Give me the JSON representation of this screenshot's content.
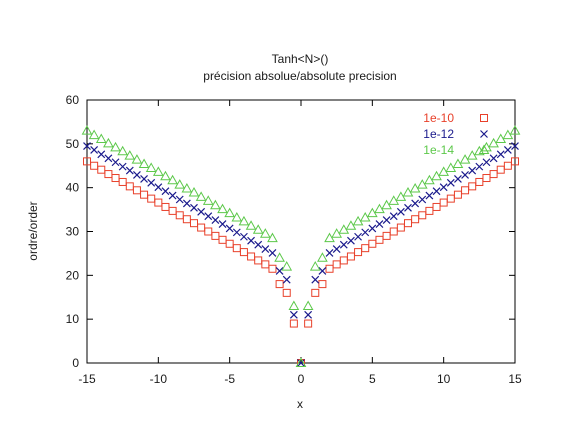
{
  "chart_data": {
    "type": "scatter",
    "title": "Tanh<N>()",
    "subtitle": "précision absolue/absolute precision",
    "xlabel": "x",
    "ylabel": "ordre/order",
    "xlim": [
      -15,
      15
    ],
    "ylim": [
      0,
      60
    ],
    "x_ticks": [
      "-15",
      "-10",
      "-5",
      "0",
      "5",
      "10",
      "15"
    ],
    "y_ticks": [
      "0",
      "10",
      "20",
      "30",
      "40",
      "50",
      "60"
    ],
    "grid": false,
    "legend_position": "top-right",
    "x": [
      -15,
      -14.5,
      -14,
      -13.5,
      -13,
      -12.5,
      -12,
      -11.5,
      -11,
      -10.5,
      -10,
      -9.5,
      -9,
      -8.5,
      -8,
      -7.5,
      -7,
      -6.5,
      -6,
      -5.5,
      -5,
      -4.5,
      -4,
      -3.5,
      -3,
      -2.5,
      -2,
      -1.5,
      -1,
      -0.5,
      0,
      0.5,
      1,
      1.5,
      2,
      2.5,
      3,
      3.5,
      4,
      4.5,
      5,
      5.5,
      6,
      6.5,
      7,
      7.5,
      8,
      8.5,
      9,
      9.5,
      10,
      10.5,
      11,
      11.5,
      12,
      12.5,
      13,
      13.5,
      14,
      14.5,
      15
    ],
    "series": [
      {
        "name": "1e-10",
        "color": "#e8402a",
        "marker": "square",
        "values": [
          46.0,
          45.0,
          44.1,
          43.1,
          42.2,
          41.3,
          40.3,
          39.4,
          38.4,
          37.5,
          36.6,
          35.6,
          34.7,
          33.7,
          32.8,
          31.9,
          30.9,
          30.0,
          29.0,
          28.1,
          27.2,
          26.2,
          25.3,
          24.3,
          23.4,
          22.5,
          21.5,
          18.0,
          16.0,
          9.0,
          0,
          9.0,
          16.0,
          18.0,
          21.5,
          22.5,
          23.4,
          24.3,
          25.3,
          26.2,
          27.2,
          28.1,
          29.0,
          30.0,
          30.9,
          31.9,
          32.8,
          33.7,
          34.7,
          35.6,
          36.6,
          37.5,
          38.4,
          39.4,
          40.3,
          41.3,
          42.2,
          43.1,
          44.1,
          45.0,
          46.0
        ]
      },
      {
        "name": "1e-12",
        "color": "#1a1a8c",
        "marker": "cross",
        "values": [
          49.5,
          48.6,
          47.6,
          46.7,
          45.8,
          44.8,
          43.9,
          42.9,
          42.0,
          41.1,
          40.1,
          39.2,
          38.2,
          37.3,
          36.4,
          35.4,
          34.5,
          33.5,
          32.6,
          31.7,
          30.7,
          29.8,
          28.8,
          27.9,
          27.0,
          26.0,
          25.1,
          21.0,
          19.0,
          11.0,
          0,
          11.0,
          19.0,
          21.0,
          25.1,
          26.0,
          27.0,
          27.9,
          28.8,
          29.8,
          30.7,
          31.7,
          32.6,
          33.5,
          34.5,
          35.4,
          36.4,
          37.3,
          38.2,
          39.2,
          40.1,
          41.1,
          42.0,
          42.9,
          43.9,
          44.8,
          45.8,
          46.7,
          47.6,
          48.6,
          49.5
        ]
      },
      {
        "name": "1e-14",
        "color": "#5cc84a",
        "marker": "triangle",
        "values": [
          53.0,
          52.0,
          51.1,
          50.1,
          49.2,
          48.3,
          47.3,
          46.4,
          45.4,
          44.5,
          43.6,
          42.6,
          41.7,
          40.7,
          39.8,
          38.9,
          37.9,
          37.0,
          36.0,
          35.1,
          34.2,
          33.2,
          32.3,
          31.3,
          30.4,
          29.5,
          28.5,
          24.0,
          22.0,
          13.0,
          0,
          13.0,
          22.0,
          24.0,
          28.5,
          29.5,
          30.4,
          31.3,
          32.3,
          33.2,
          34.2,
          35.1,
          36.0,
          37.0,
          37.9,
          38.9,
          39.8,
          40.7,
          41.7,
          42.6,
          43.6,
          44.5,
          45.4,
          46.4,
          47.3,
          48.3,
          49.2,
          50.1,
          51.1,
          52.0,
          53.0
        ]
      }
    ]
  }
}
